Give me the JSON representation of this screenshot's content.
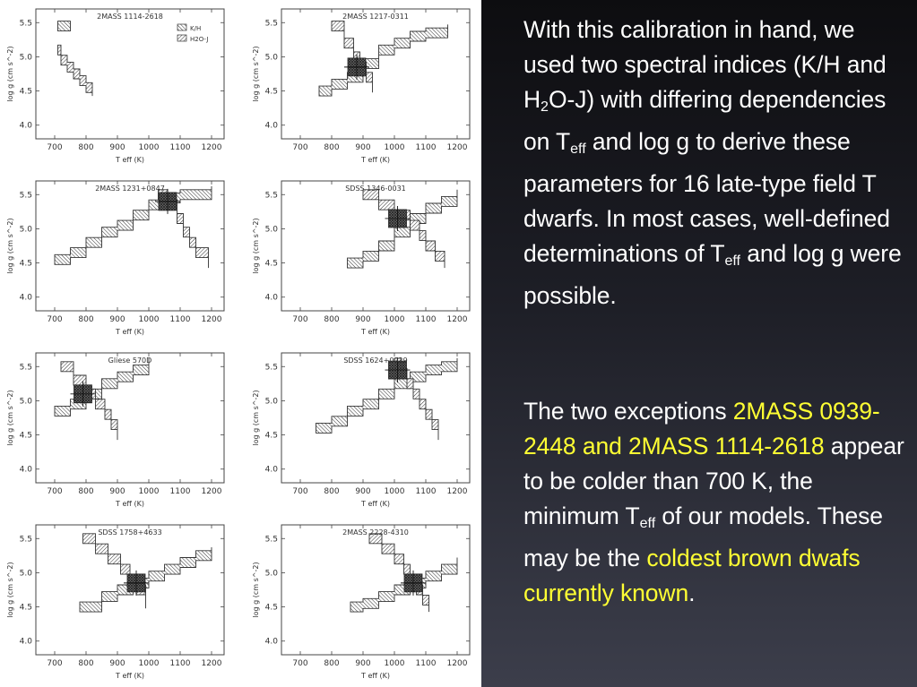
{
  "figure": {
    "legend_labels": [
      "K/H",
      "H2O-J"
    ],
    "xlabel": "T eff (K)",
    "ylabel": "log g (cm s^-2)",
    "x_ticks": [
      "700",
      "800",
      "900",
      "1000",
      "1100",
      "1200"
    ],
    "y_ticks": [
      "4.0",
      "4.5",
      "5.0",
      "5.5"
    ]
  },
  "chart_data": [
    {
      "type": "area",
      "title": "2MASS 1114-2618",
      "xlabel": "Teff (K)",
      "ylabel": "log g (cm s^-2)",
      "xlim": [
        640,
        1240
      ],
      "ylim": [
        3.8,
        5.7
      ],
      "legend": {
        "entries": [
          "K/H",
          "H2O-J"
        ],
        "placement": "top-right"
      },
      "series": [
        {
          "name": "K/H",
          "points": [
            [
              710,
              5.45
            ],
            [
              750,
              5.45
            ]
          ]
        },
        {
          "name": "H2O-J",
          "points": [
            [
              710,
              5.1
            ],
            [
              720,
              4.95
            ],
            [
              740,
              4.85
            ],
            [
              760,
              4.75
            ],
            [
              780,
              4.65
            ],
            [
              800,
              4.55
            ],
            [
              820,
              4.5
            ]
          ]
        }
      ]
    },
    {
      "type": "area",
      "title": "2MASS 1217-0311",
      "xlabel": "Teff (K)",
      "ylabel": "log g (cm s^-2)",
      "xlim": [
        640,
        1240
      ],
      "ylim": [
        3.8,
        5.7
      ],
      "series": [
        {
          "name": "K/H",
          "points": [
            [
              760,
              4.5
            ],
            [
              800,
              4.6
            ],
            [
              850,
              4.7
            ],
            [
              900,
              4.9
            ],
            [
              950,
              5.1
            ],
            [
              1000,
              5.2
            ],
            [
              1050,
              5.3
            ],
            [
              1100,
              5.35
            ],
            [
              1170,
              5.4
            ]
          ]
        },
        {
          "name": "H2O-J",
          "points": [
            [
              800,
              5.45
            ],
            [
              840,
              5.2
            ],
            [
              870,
              5.0
            ],
            [
              890,
              4.85
            ],
            [
              910,
              4.7
            ],
            [
              930,
              4.55
            ]
          ]
        }
      ],
      "overlap": {
        "teff": 880,
        "logg": 4.85
      }
    },
    {
      "type": "area",
      "title": "2MASS 1231+0847",
      "xlabel": "Teff (K)",
      "ylabel": "log g (cm s^-2)",
      "xlim": [
        640,
        1240
      ],
      "ylim": [
        3.8,
        5.7
      ],
      "series": [
        {
          "name": "K/H",
          "points": [
            [
              700,
              4.55
            ],
            [
              750,
              4.65
            ],
            [
              800,
              4.8
            ],
            [
              850,
              4.95
            ],
            [
              900,
              5.05
            ],
            [
              950,
              5.2
            ],
            [
              1000,
              5.35
            ],
            [
              1050,
              5.45
            ],
            [
              1100,
              5.5
            ],
            [
              1150,
              5.5
            ],
            [
              1200,
              5.55
            ]
          ]
        },
        {
          "name": "H2O-J",
          "points": [
            [
              1030,
              5.5
            ],
            [
              1060,
              5.35
            ],
            [
              1090,
              5.15
            ],
            [
              1110,
              4.95
            ],
            [
              1130,
              4.8
            ],
            [
              1150,
              4.65
            ],
            [
              1190,
              4.5
            ]
          ]
        }
      ],
      "overlap": {
        "teff": 1060,
        "logg": 5.4
      }
    },
    {
      "type": "area",
      "title": "SDSS 1346-0031",
      "xlabel": "Teff (K)",
      "ylabel": "log g (cm s^-2)",
      "xlim": [
        640,
        1240
      ],
      "ylim": [
        3.8,
        5.7
      ],
      "series": [
        {
          "name": "K/H",
          "points": [
            [
              850,
              4.5
            ],
            [
              900,
              4.6
            ],
            [
              950,
              4.75
            ],
            [
              1000,
              4.95
            ],
            [
              1050,
              5.15
            ],
            [
              1100,
              5.3
            ],
            [
              1150,
              5.4
            ],
            [
              1200,
              5.5
            ]
          ]
        },
        {
          "name": "H2O-J",
          "points": [
            [
              900,
              5.5
            ],
            [
              950,
              5.35
            ],
            [
              1000,
              5.2
            ],
            [
              1050,
              5.05
            ],
            [
              1080,
              4.9
            ],
            [
              1100,
              4.75
            ],
            [
              1130,
              4.6
            ],
            [
              1160,
              4.5
            ]
          ]
        }
      ],
      "overlap": {
        "teff": 1010,
        "logg": 5.15
      }
    },
    {
      "type": "area",
      "title": "Gliese 570D",
      "xlabel": "Teff (K)",
      "ylabel": "log g (cm s^-2)",
      "xlim": [
        640,
        1240
      ],
      "ylim": [
        3.8,
        5.7
      ],
      "series": [
        {
          "name": "K/H",
          "points": [
            [
              700,
              4.85
            ],
            [
              750,
              4.95
            ],
            [
              800,
              5.1
            ],
            [
              850,
              5.25
            ],
            [
              900,
              5.35
            ],
            [
              950,
              5.45
            ],
            [
              1000,
              5.55
            ]
          ]
        },
        {
          "name": "H2O-J",
          "points": [
            [
              720,
              5.5
            ],
            [
              760,
              5.3
            ],
            [
              800,
              5.1
            ],
            [
              830,
              4.95
            ],
            [
              860,
              4.8
            ],
            [
              880,
              4.65
            ],
            [
              900,
              4.5
            ]
          ]
        }
      ],
      "overlap": {
        "teff": 790,
        "logg": 5.1
      }
    },
    {
      "type": "area",
      "title": "SDSS 1624+0029",
      "xlabel": "Teff (K)",
      "ylabel": "log g (cm s^-2)",
      "xlim": [
        640,
        1240
      ],
      "ylim": [
        3.8,
        5.7
      ],
      "series": [
        {
          "name": "K/H",
          "points": [
            [
              750,
              4.6
            ],
            [
              800,
              4.7
            ],
            [
              850,
              4.85
            ],
            [
              900,
              4.95
            ],
            [
              950,
              5.1
            ],
            [
              1000,
              5.25
            ],
            [
              1050,
              5.35
            ],
            [
              1100,
              5.45
            ],
            [
              1150,
              5.5
            ],
            [
              1200,
              5.55
            ]
          ]
        },
        {
          "name": "H2O-J",
          "points": [
            [
              1000,
              5.55
            ],
            [
              1020,
              5.4
            ],
            [
              1040,
              5.25
            ],
            [
              1060,
              5.1
            ],
            [
              1080,
              4.95
            ],
            [
              1100,
              4.8
            ],
            [
              1120,
              4.65
            ],
            [
              1140,
              4.5
            ]
          ]
        }
      ],
      "overlap": {
        "teff": 1010,
        "logg": 5.45
      }
    },
    {
      "type": "area",
      "title": "SDSS 1758+4633",
      "xlabel": "Teff (K)",
      "ylabel": "log g (cm s^-2)",
      "xlim": [
        640,
        1240
      ],
      "ylim": [
        3.8,
        5.7
      ],
      "series": [
        {
          "name": "K/H",
          "points": [
            [
              780,
              4.5
            ],
            [
              850,
              4.65
            ],
            [
              900,
              4.75
            ],
            [
              950,
              4.85
            ],
            [
              1000,
              4.95
            ],
            [
              1050,
              5.05
            ],
            [
              1100,
              5.15
            ],
            [
              1150,
              5.25
            ],
            [
              1200,
              5.3
            ]
          ]
        },
        {
          "name": "H2O-J",
          "points": [
            [
              790,
              5.5
            ],
            [
              830,
              5.35
            ],
            [
              870,
              5.2
            ],
            [
              910,
              5.05
            ],
            [
              940,
              4.9
            ],
            [
              960,
              4.75
            ],
            [
              990,
              4.55
            ]
          ]
        }
      ],
      "overlap": {
        "teff": 960,
        "logg": 4.85
      }
    },
    {
      "type": "area",
      "title": "2MASS 2228-4310",
      "xlabel": "Teff (K)",
      "ylabel": "log g (cm s^-2)",
      "xlim": [
        640,
        1240
      ],
      "ylim": [
        3.8,
        5.7
      ],
      "series": [
        {
          "name": "K/H",
          "points": [
            [
              860,
              4.5
            ],
            [
              900,
              4.55
            ],
            [
              950,
              4.65
            ],
            [
              1000,
              4.75
            ],
            [
              1050,
              4.85
            ],
            [
              1100,
              4.95
            ],
            [
              1150,
              5.05
            ],
            [
              1200,
              5.15
            ]
          ]
        },
        {
          "name": "H2O-J",
          "points": [
            [
              920,
              5.5
            ],
            [
              960,
              5.35
            ],
            [
              1000,
              5.2
            ],
            [
              1030,
              5.05
            ],
            [
              1050,
              4.9
            ],
            [
              1070,
              4.75
            ],
            [
              1090,
              4.6
            ],
            [
              1110,
              4.5
            ]
          ]
        }
      ],
      "overlap": {
        "teff": 1060,
        "logg": 4.85
      }
    }
  ],
  "text": {
    "para1_before": "With this calibration in hand, we used two spectral indices (K/H and H",
    "sub_2": "2",
    "para1_mid": "O-J) with differing dependencies on T",
    "sub_eff": "eff",
    "para1_mid2": " and log g to derive these parameters for 16 late-type field T dwarfs.  In most cases, well-defined determinations of T",
    "para1_end": " and log g were possible.",
    "para2_start": "The two exceptions ",
    "para2_hl1": "2MASS 0939-2448 and 2MASS 1114-2618",
    "para2_mid": " appear to be colder than 700 K, the minimum T",
    "para2_mid2": " of our models. These may be the ",
    "para2_hl2": "coldest brown dwafs currently known",
    "para2_end": "."
  },
  "colors": {
    "highlight": "#ffff33",
    "text": "#ffffff",
    "background_top": "#0d0d10",
    "background_bottom": "#3c3e4b"
  }
}
